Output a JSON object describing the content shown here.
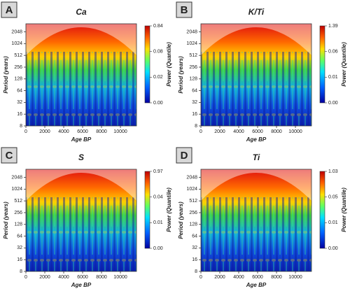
{
  "chart_data": [
    {
      "type": "wavelet",
      "panel_label": "A",
      "title": "Ca",
      "x_label": "Age BP",
      "y_label": "Period (years)",
      "colorbar_label": "Power (Quantile)",
      "xlim": [
        0,
        11700
      ],
      "xticks": [
        0,
        2000,
        4000,
        6000,
        8000,
        10000
      ],
      "ylim": [
        8,
        3300
      ],
      "yticks": [
        8,
        16,
        32,
        64,
        128,
        256,
        512,
        1024,
        2048
      ],
      "y_scale": "log2",
      "colorbar_ticks": [
        {
          "value": 0,
          "label": "0.00"
        },
        {
          "value": 0.02,
          "label": "0.02"
        },
        {
          "value": 0.08,
          "label": "0.08"
        },
        {
          "value": 0.84,
          "label": "0.84"
        }
      ]
    },
    {
      "type": "wavelet",
      "panel_label": "B",
      "title": "K/Ti",
      "x_label": "Age BP",
      "y_label": "Period (years)",
      "colorbar_label": "Power (Quantile)",
      "xlim": [
        0,
        11700
      ],
      "xticks": [
        0,
        2000,
        4000,
        6000,
        8000,
        10000
      ],
      "ylim": [
        8,
        3300
      ],
      "yticks": [
        8,
        16,
        32,
        64,
        128,
        256,
        512,
        1024,
        2048
      ],
      "y_scale": "log2",
      "colorbar_ticks": [
        {
          "value": 0,
          "label": "0.00"
        },
        {
          "value": 0.01,
          "label": "0.01"
        },
        {
          "value": 0.06,
          "label": "0.06"
        },
        {
          "value": 1.39,
          "label": "1.39"
        }
      ]
    },
    {
      "type": "wavelet",
      "panel_label": "C",
      "title": "S",
      "x_label": "Age BP",
      "y_label": "Period (years)",
      "colorbar_label": "Power (Quantile)",
      "xlim": [
        0,
        11700
      ],
      "xticks": [
        0,
        2000,
        4000,
        6000,
        8000,
        10000
      ],
      "ylim": [
        8,
        3300
      ],
      "yticks": [
        8,
        16,
        32,
        64,
        128,
        256,
        512,
        1024,
        2048
      ],
      "y_scale": "log2",
      "colorbar_ticks": [
        {
          "value": 0,
          "label": "0.00"
        },
        {
          "value": 0.01,
          "label": "0.01"
        },
        {
          "value": 0.04,
          "label": "0.04"
        },
        {
          "value": 0.97,
          "label": "0.97"
        }
      ]
    },
    {
      "type": "wavelet",
      "panel_label": "D",
      "title": "Ti",
      "x_label": "Age BP",
      "y_label": "Period (years)",
      "colorbar_label": "Power (Quantile)",
      "xlim": [
        0,
        11700
      ],
      "xticks": [
        0,
        2000,
        4000,
        6000,
        8000,
        10000
      ],
      "ylim": [
        8,
        3300
      ],
      "yticks": [
        8,
        16,
        32,
        64,
        128,
        256,
        512,
        1024,
        2048
      ],
      "y_scale": "log2",
      "colorbar_ticks": [
        {
          "value": 0,
          "label": "0.00"
        },
        {
          "value": 0.01,
          "label": "0.01"
        },
        {
          "value": 0.05,
          "label": "0.05"
        },
        {
          "value": 1.03,
          "label": "1.03"
        }
      ]
    }
  ]
}
